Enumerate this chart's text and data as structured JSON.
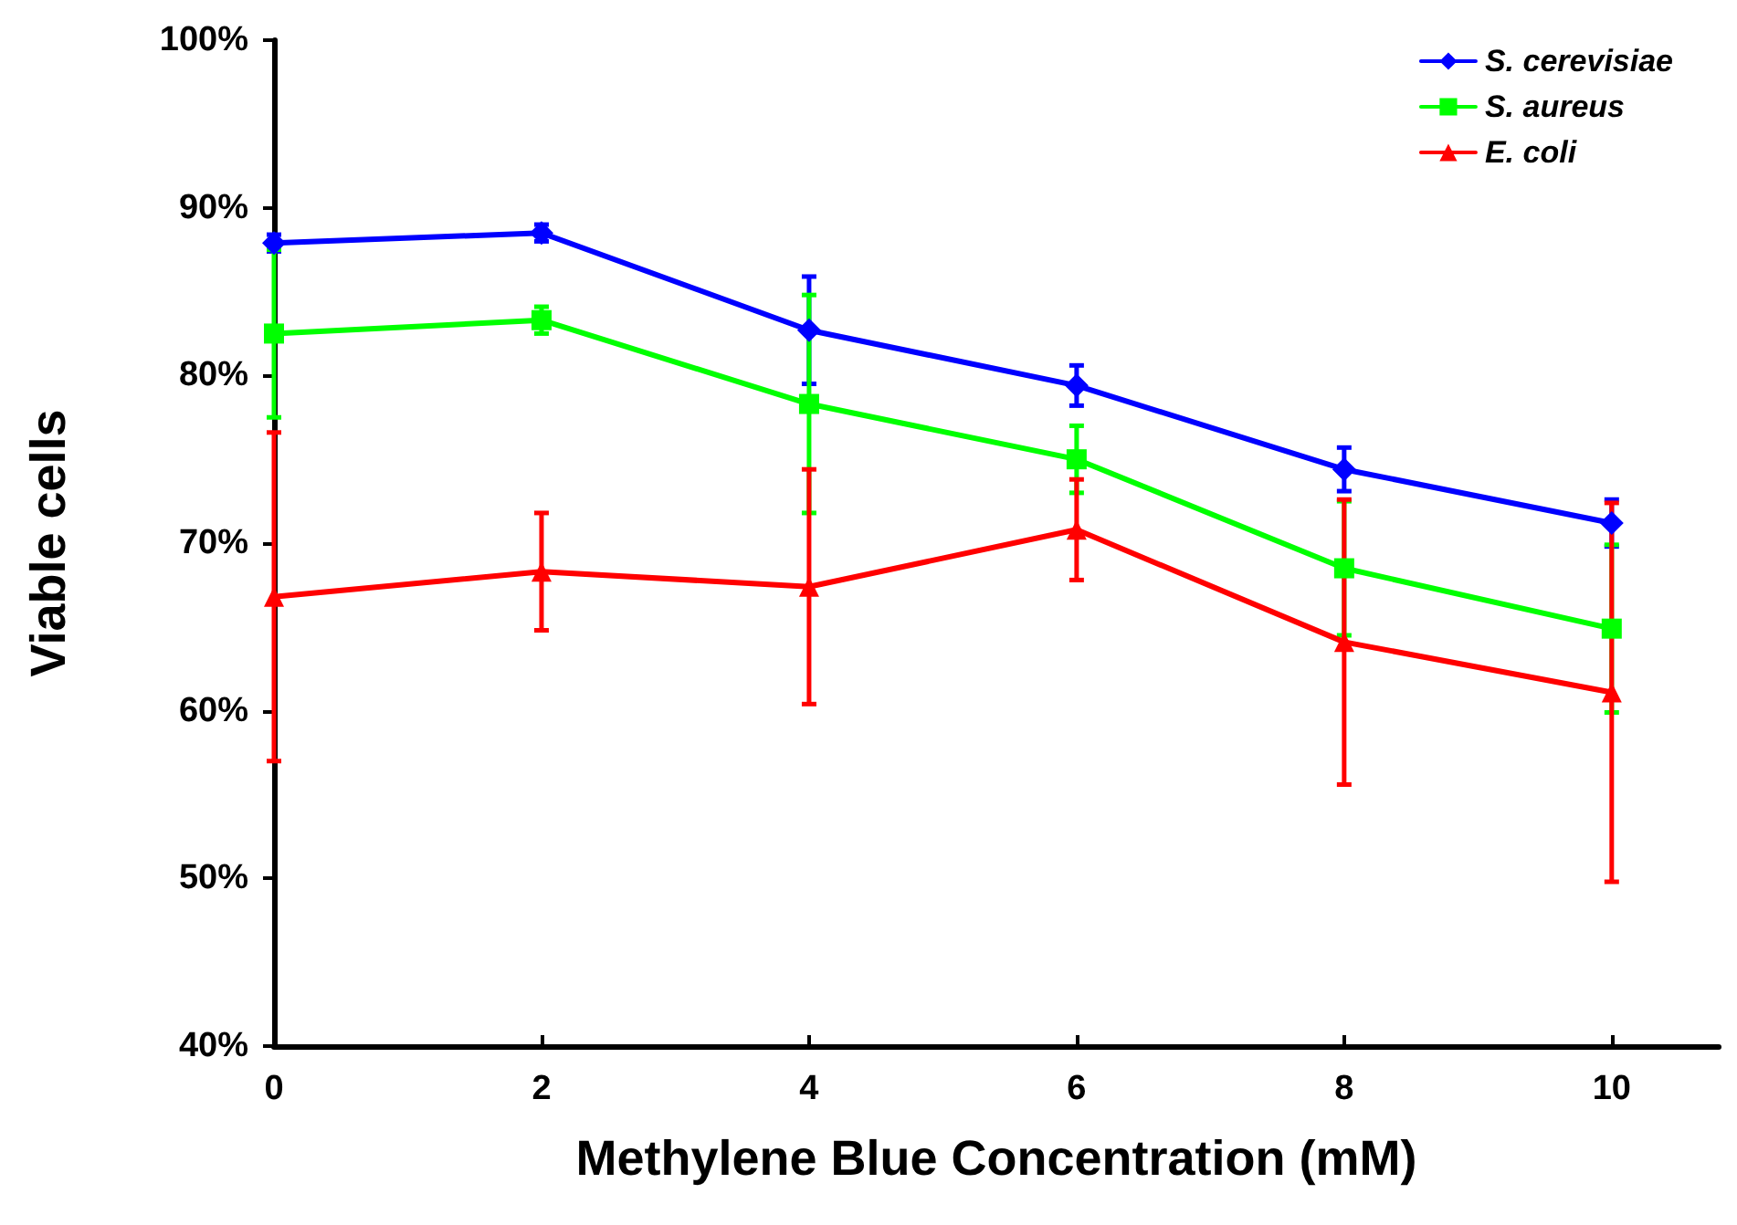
{
  "chart_data": {
    "type": "line",
    "xlabel": "Methylene Blue Concentration (mM)",
    "ylabel": "Viable cells",
    "x": [
      0,
      2,
      4,
      6,
      8,
      10
    ],
    "xlim": [
      0,
      10.8
    ],
    "xticks": [
      0,
      2,
      4,
      6,
      8,
      10
    ],
    "ylim": [
      40,
      100
    ],
    "yticks": [
      {
        "value": 40,
        "label": "40%"
      },
      {
        "value": 50,
        "label": "50%"
      },
      {
        "value": 60,
        "label": "60%"
      },
      {
        "value": 70,
        "label": "70%"
      },
      {
        "value": 80,
        "label": "80%"
      },
      {
        "value": 90,
        "label": "90%"
      },
      {
        "value": 100,
        "label": "100%"
      }
    ],
    "grid": false,
    "legend": "top right",
    "line_style": "solid",
    "series": [
      {
        "name": "S. cerevisiae",
        "color": "#0000ff",
        "marker": "diamond",
        "values": [
          87.9,
          88.5,
          82.7,
          79.4,
          74.4,
          71.2
        ],
        "errors": [
          0.5,
          0.5,
          3.2,
          1.2,
          1.3,
          1.4
        ]
      },
      {
        "name": "S. aureus",
        "color": "#00ff00",
        "marker": "square",
        "values": [
          82.5,
          83.3,
          78.3,
          75,
          68.5,
          64.9
        ],
        "errors": [
          5,
          0.8,
          6.5,
          2,
          4,
          5
        ]
      },
      {
        "name": "E. coli",
        "color": "#ff0000",
        "marker": "triangle",
        "values": [
          66.8,
          68.3,
          67.4,
          70.8,
          64.1,
          61.1
        ],
        "errors": [
          9.8,
          3.5,
          7,
          3,
          8.5,
          11.3
        ]
      }
    ]
  }
}
